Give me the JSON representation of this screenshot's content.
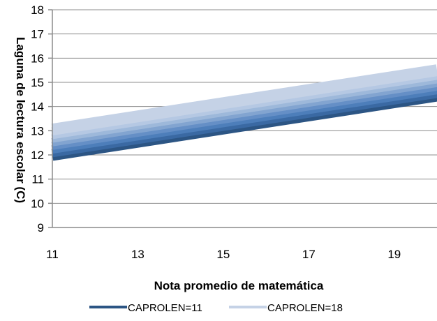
{
  "chart_data": {
    "type": "line",
    "title": "",
    "xlabel": "Nota promedio de matemática",
    "ylabel": "Laguna de lectura escolar (C)",
    "xlim": [
      11,
      20
    ],
    "ylim": [
      9,
      18
    ],
    "xticks": [
      11,
      13,
      15,
      17,
      19
    ],
    "yticks": [
      9,
      10,
      11,
      12,
      13,
      14,
      15,
      16,
      17,
      18
    ],
    "grid": "horizontal",
    "legend_position": "bottom",
    "series": [
      {
        "name": "CAPROLEN=11",
        "color": "#2c5584",
        "x": [
          11,
          20
        ],
        "y": [
          12.0,
          14.45
        ]
      },
      {
        "name": "",
        "color": "#3a69a3",
        "x": [
          11,
          20
        ],
        "y": [
          12.15,
          14.6
        ]
      },
      {
        "name": "",
        "color": "#4d7eba",
        "x": [
          11,
          20
        ],
        "y": [
          12.3,
          14.75
        ]
      },
      {
        "name": "",
        "color": "#658fc6",
        "x": [
          11,
          20
        ],
        "y": [
          12.45,
          14.9
        ]
      },
      {
        "name": "",
        "color": "#82a4d0",
        "x": [
          11,
          20
        ],
        "y": [
          12.6,
          15.05
        ]
      },
      {
        "name": "",
        "color": "#9db8da",
        "x": [
          11,
          20
        ],
        "y": [
          12.75,
          15.2
        ]
      },
      {
        "name": "",
        "color": "#b5c8e3",
        "x": [
          11,
          20
        ],
        "y": [
          12.9,
          15.35
        ]
      },
      {
        "name": "CAPROLEN=18",
        "color": "#c5d2e6",
        "x": [
          11,
          20
        ],
        "y": [
          13.05,
          15.5
        ]
      }
    ],
    "legend": [
      {
        "name": "CAPROLEN=11",
        "color": "#2c5584"
      },
      {
        "name": "CAPROLEN=18",
        "color": "#c5d2e6"
      }
    ]
  }
}
